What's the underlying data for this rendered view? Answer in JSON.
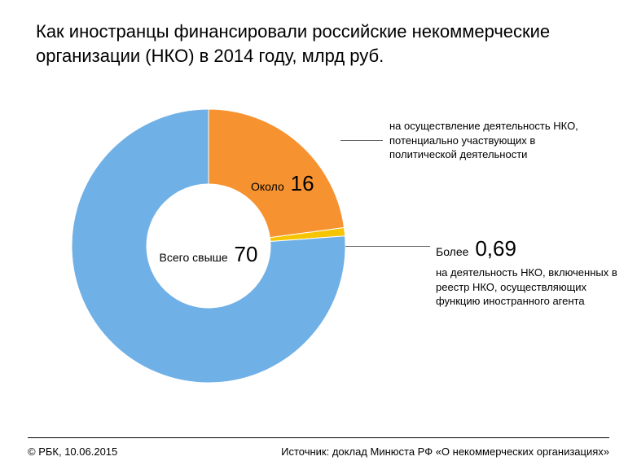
{
  "title": "Как иностранцы финансировали российские некоммерческие организации (НКО) в 2014 году, млрд руб.",
  "chart": {
    "type": "donut",
    "background_color": "#ffffff",
    "outer_radius": 168,
    "inner_radius": 76,
    "start_angle_deg": 0,
    "slices": [
      {
        "key": "political",
        "value": 16,
        "color": "#f6922f",
        "label_prefix": "Около",
        "label_value": "16",
        "description": "на осуществление деятельность НКО, потенциально участвующих в политической деятельности"
      },
      {
        "key": "foreign_agent",
        "value": 0.69,
        "color": "#f7c400",
        "label_prefix": "Более",
        "label_value": "0,69",
        "description": "на деятельность НКО, включенных в реестр НКО, осуществляющих функцию иностранного агента"
      },
      {
        "key": "other",
        "value": 53.31,
        "color": "#6fb0e6",
        "label_prefix": "",
        "label_value": "",
        "description": ""
      }
    ],
    "center_label_prefix": "Всего свыше",
    "center_label_value": "70",
    "leader_line_color": "#666666",
    "text_color": "#000000",
    "title_fontsize": 22,
    "body_fontsize": 13,
    "value_fontsize_small": 14,
    "value_fontsize_big": 26
  },
  "footer": {
    "left": "© РБК, 10.06.2015",
    "right": "Источник: доклад Минюста РФ «О некоммерческих организациях»"
  }
}
